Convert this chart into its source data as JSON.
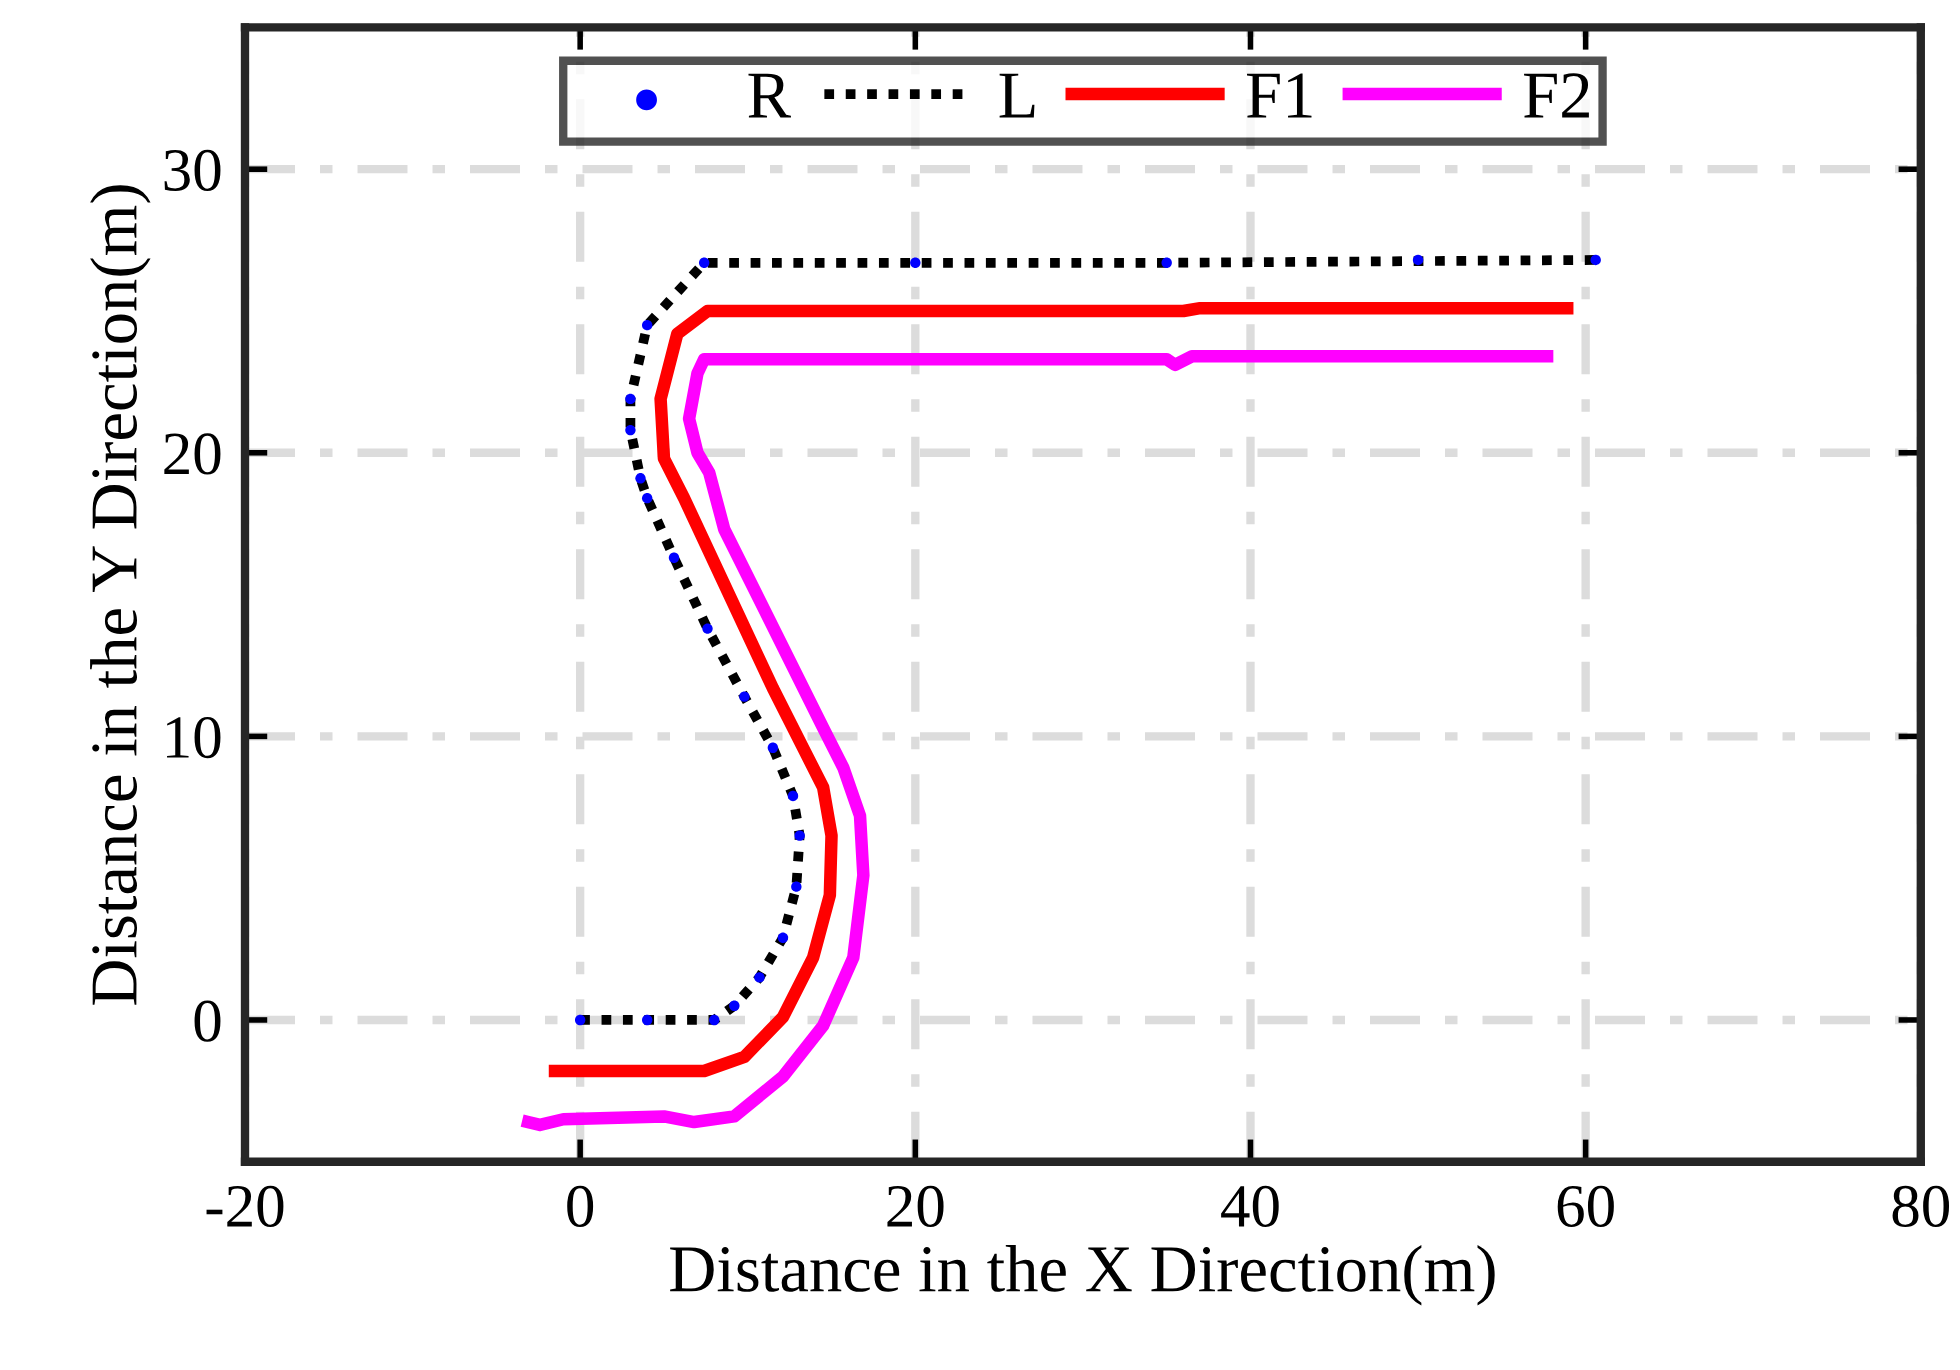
{
  "chart_data": {
    "type": "line",
    "xlabel": "Distance in the X Direction(m)",
    "ylabel": "Distance in the Y Direction(m)",
    "xlim": [
      -20,
      80
    ],
    "xticks": [
      -20,
      0,
      20,
      40,
      60,
      80
    ],
    "ylim": [
      -5,
      35
    ],
    "yticks": [
      0,
      10,
      20,
      30
    ],
    "grid": true,
    "legend": "top",
    "series": [
      {
        "name": "R",
        "type": "scatter",
        "marker": "circle",
        "color": "#0000ff",
        "x": [
          0,
          4,
          8,
          9.2,
          10.7,
          12.1,
          12.9,
          13.1,
          12.7,
          11.5,
          9.8,
          7.6,
          5.6,
          4.0,
          3.6,
          3.0,
          3.0,
          4.0,
          7.4,
          20,
          35,
          50,
          60.6
        ],
        "values": [
          0,
          0,
          0,
          0.5,
          1.5,
          2.9,
          4.7,
          6.5,
          7.9,
          9.6,
          11.4,
          13.8,
          16.3,
          18.4,
          19.1,
          20.8,
          21.9,
          24.5,
          26.7,
          26.7,
          26.7,
          26.8,
          26.8
        ]
      },
      {
        "name": "L",
        "line_style": "dotted",
        "color": "#000000",
        "x": [
          0,
          8,
          9.2,
          10.7,
          12.1,
          12.9,
          13.1,
          12.7,
          11.5,
          9.8,
          7.6,
          5.6,
          4.0,
          3.6,
          3.0,
          3.0,
          4.0,
          7.4,
          35,
          60.6
        ],
        "values": [
          0,
          0,
          0.5,
          1.5,
          2.9,
          4.7,
          6.5,
          7.9,
          9.6,
          11.4,
          13.8,
          16.3,
          18.4,
          19.1,
          20.8,
          21.9,
          24.5,
          26.7,
          26.7,
          26.8
        ]
      },
      {
        "name": "F1",
        "line_style": "solid",
        "color": "#ff0000",
        "x": [
          -1.5,
          7.4,
          9.8,
          12.1,
          13.9,
          14.9,
          15.0,
          14.5,
          13.3,
          11.5,
          6.2,
          5.0,
          4.8,
          5.8,
          7.6,
          36,
          37,
          58.9
        ],
        "values": [
          -1.8,
          -1.8,
          -1.3,
          0.1,
          2.2,
          4.4,
          6.5,
          8.2,
          9.6,
          11.7,
          18.4,
          19.8,
          21.9,
          24.2,
          25.0,
          25.0,
          25.1,
          25.1
        ]
      },
      {
        "name": "F2",
        "line_style": "solid",
        "color": "#ff00ff",
        "x": [
          -3.1,
          -2.4,
          -1.0,
          5.0,
          6.8,
          9.2,
          12.1,
          14.5,
          16.3,
          16.9,
          16.7,
          15.7,
          14.5,
          8.6,
          7.7,
          7.0,
          6.5,
          7.0,
          7.4,
          35,
          35.5,
          36.5,
          57.7
        ],
        "values": [
          -3.6,
          -3.7,
          -3.5,
          -3.4,
          -3.6,
          -3.4,
          -2.0,
          -0.2,
          2.2,
          5.1,
          7.2,
          8.9,
          10.3,
          17.3,
          19.3,
          20.0,
          21.2,
          22.8,
          23.3,
          23.3,
          23.1,
          23.4,
          23.4
        ]
      }
    ]
  }
}
